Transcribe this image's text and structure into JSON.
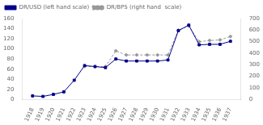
{
  "chart_data": {
    "type": "line",
    "x": [
      1918,
      1919,
      1920,
      1921,
      1922,
      1923,
      1924,
      1925,
      1926,
      1927,
      1928,
      1929,
      1930,
      1931,
      1932,
      1933,
      1934,
      1935,
      1936,
      1937
    ],
    "xlim": [
      1917,
      1938
    ],
    "xticks": [
      1918,
      1919,
      1920,
      1921,
      1922,
      1923,
      1924,
      1925,
      1926,
      1927,
      1928,
      1929,
      1930,
      1931,
      1932,
      1933,
      1934,
      1935,
      1936,
      1937
    ],
    "ylim": [
      0,
      160
    ],
    "yticks": [
      0,
      20,
      40,
      60,
      80,
      100,
      120,
      140,
      160
    ],
    "y2lim": [
      0,
      700
    ],
    "y2ticks": [
      0,
      100,
      200,
      300,
      400,
      500,
      600,
      700
    ],
    "grid": false,
    "legend": "upper left",
    "series": [
      {
        "name": "DR/USD (left hand scale)",
        "color": "#00008B",
        "marker": "square",
        "line_style": "solid",
        "values": [
          7,
          6,
          10,
          15,
          38,
          67,
          65,
          63,
          80,
          76,
          76,
          76,
          76,
          78,
          136,
          147,
          108,
          109,
          109,
          115
        ]
      },
      {
        "name": "DR/BPS (right hand  scale)",
        "color": "#999999",
        "marker": "diamond",
        "line_style": "dashed",
        "axis": "y2",
        "values": [
          null,
          null,
          null,
          null,
          null,
          285,
          285,
          285,
          420,
          385,
          385,
          385,
          385,
          385,
          600,
          635,
          500,
          510,
          515,
          545
        ]
      }
    ]
  }
}
